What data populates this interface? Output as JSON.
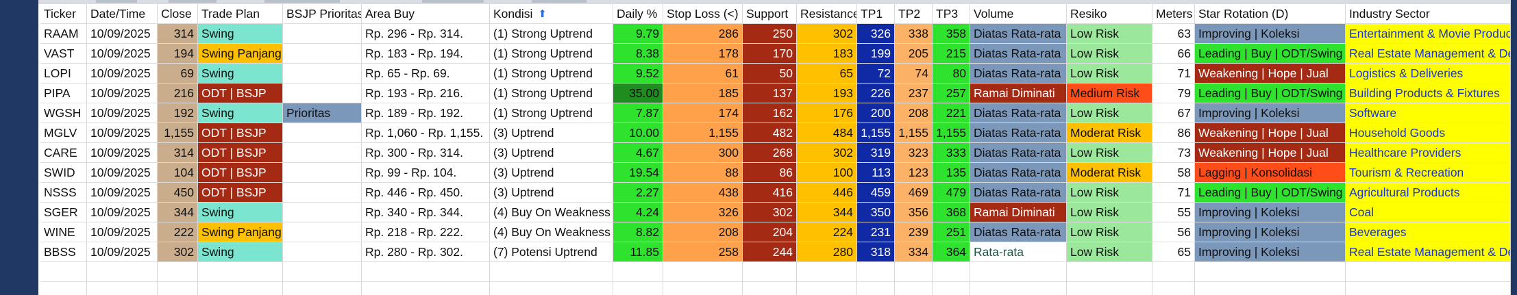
{
  "colors": {
    "window_frame": "#1f3864",
    "close_bg": "#c9ad8c",
    "trade_swing": "#7be5cf",
    "trade_swing_panjang": "#ffc000",
    "trade_odt": "#a52a14",
    "bsjp_prioritas": "#7b97b9",
    "daily_bright": "#2ee22e",
    "daily_dark": "#1e8c1e",
    "stop_loss": "#ffa04a",
    "support": "#a52a14",
    "resistance": "#ffc000",
    "tp1": "#102aa6",
    "tp2": "#fbb266",
    "tp3": "#2ee22e",
    "volume_diatas": "#7b97b9",
    "volume_ramai": "#a52a14",
    "risk_low": "#9be79b",
    "risk_medium": "#ff4d1a",
    "risk_moderat": "#ffc000",
    "rot_improving": "#7b97b9",
    "rot_leading": "#2ee22e",
    "rot_weakening": "#a52a14",
    "rot_lagging": "#ff4d1a",
    "industry_bg": "#ffff00",
    "industry_text": "#1a35c8",
    "arrow_icon": "#2d6bd6"
  },
  "table": {
    "headers": [
      "Ticker",
      "Date/Time",
      "Close",
      "Trade Plan",
      "BSJP Prioritas",
      "Area Buy",
      "Kondisi",
      "Daily %",
      "Stop Loss (<)",
      "Support",
      "Resistance",
      "TP1",
      "TP2",
      "TP3",
      "Volume",
      "Resiko",
      "Meters",
      "Star Rotation (D)",
      "Industry Sector"
    ],
    "kondisi_sort_icon": "sort-arrow-icon",
    "rows": [
      {
        "ticker": "RAAM",
        "date": "10/09/2025",
        "close": "314",
        "plan": "Swing",
        "bsjp": "",
        "area": "Rp. 296 - Rp. 314.",
        "kondisi": "(1) Strong Uptrend",
        "daily": "9.79",
        "stop": "286",
        "support": "250",
        "resistance": "302",
        "tp1": "326",
        "tp2": "338",
        "tp3": "358",
        "volume": "Diatas Rata-rata",
        "resiko": "Low Risk",
        "meters": "63",
        "rotation": "Improving | Koleksi",
        "industry": "Entertainment & Movie Production"
      },
      {
        "ticker": "VAST",
        "date": "10/09/2025",
        "close": "194",
        "plan": "Swing Panjang",
        "bsjp": "",
        "area": "Rp. 183 - Rp. 194.",
        "kondisi": "(1) Strong Uptrend",
        "daily": "8.38",
        "stop": "178",
        "support": "170",
        "resistance": "183",
        "tp1": "199",
        "tp2": "205",
        "tp3": "215",
        "volume": "Diatas Rata-rata",
        "resiko": "Low Risk",
        "meters": "66",
        "rotation": "Leading | Buy | ODT/Swing",
        "industry": "Real Estate Management & Development"
      },
      {
        "ticker": "LOPI",
        "date": "10/09/2025",
        "close": "69",
        "plan": "Swing",
        "bsjp": "",
        "area": "Rp. 65 - Rp. 69.",
        "kondisi": "(1) Strong Uptrend",
        "daily": "9.52",
        "stop": "61",
        "support": "50",
        "resistance": "65",
        "tp1": "72",
        "tp2": "74",
        "tp3": "80",
        "volume": "Diatas Rata-rata",
        "resiko": "Low Risk",
        "meters": "71",
        "rotation": "Weakening | Hope | Jual",
        "industry": "Logistics & Deliveries"
      },
      {
        "ticker": "PIPA",
        "date": "10/09/2025",
        "close": "216",
        "plan": "ODT | BSJP",
        "bsjp": "",
        "area": "Rp. 193 - Rp. 216.",
        "kondisi": "(1) Strong Uptrend",
        "daily": "35.00",
        "stop": "185",
        "support": "137",
        "resistance": "193",
        "tp1": "226",
        "tp2": "237",
        "tp3": "257",
        "volume": "Ramai Diminati",
        "resiko": "Medium Risk",
        "meters": "79",
        "rotation": "Leading | Buy | ODT/Swing",
        "industry": "Building Products & Fixtures"
      },
      {
        "ticker": "WGSH",
        "date": "10/09/2025",
        "close": "192",
        "plan": "Swing",
        "bsjp": "Prioritas",
        "area": "Rp. 189 - Rp. 192.",
        "kondisi": "(1) Strong Uptrend",
        "daily": "7.87",
        "stop": "174",
        "support": "162",
        "resistance": "176",
        "tp1": "200",
        "tp2": "208",
        "tp3": "221",
        "volume": "Diatas Rata-rata",
        "resiko": "Low Risk",
        "meters": "67",
        "rotation": "Improving | Koleksi",
        "industry": "Software"
      },
      {
        "ticker": "MGLV",
        "date": "10/09/2025",
        "close": "1,155",
        "plan": "ODT | BSJP",
        "bsjp": "",
        "area": "Rp. 1,060 - Rp. 1,155.",
        "kondisi": "(3) Uptrend",
        "daily": "10.00",
        "stop": "1,155",
        "support": "482",
        "resistance": "484",
        "tp1": "1,155",
        "tp2": "1,155",
        "tp3": "1,155",
        "volume": "Diatas Rata-rata",
        "resiko": "Moderat Risk",
        "meters": "86",
        "rotation": "Weakening | Hope | Jual",
        "industry": "Household Goods"
      },
      {
        "ticker": "CARE",
        "date": "10/09/2025",
        "close": "314",
        "plan": "ODT | BSJP",
        "bsjp": "",
        "area": "Rp. 300 - Rp. 314.",
        "kondisi": "(3) Uptrend",
        "daily": "4.67",
        "stop": "300",
        "support": "268",
        "resistance": "302",
        "tp1": "319",
        "tp2": "323",
        "tp3": "333",
        "volume": "Diatas Rata-rata",
        "resiko": "Low Risk",
        "meters": "73",
        "rotation": "Weakening | Hope | Jual",
        "industry": "Healthcare Providers"
      },
      {
        "ticker": "SWID",
        "date": "10/09/2025",
        "close": "104",
        "plan": "ODT | BSJP",
        "bsjp": "",
        "area": "Rp. 99 - Rp. 104.",
        "kondisi": "(3) Uptrend",
        "daily": "19.54",
        "stop": "88",
        "support": "86",
        "resistance": "100",
        "tp1": "113",
        "tp2": "123",
        "tp3": "135",
        "volume": "Diatas Rata-rata",
        "resiko": "Moderat Risk",
        "meters": "58",
        "rotation": "Lagging | Konsolidasi",
        "industry": "Tourism & Recreation"
      },
      {
        "ticker": "NSSS",
        "date": "10/09/2025",
        "close": "450",
        "plan": "ODT | BSJP",
        "bsjp": "",
        "area": "Rp. 446 - Rp. 450.",
        "kondisi": "(3) Uptrend",
        "daily": "2.27",
        "stop": "438",
        "support": "416",
        "resistance": "446",
        "tp1": "459",
        "tp2": "469",
        "tp3": "479",
        "volume": "Diatas Rata-rata",
        "resiko": "Low Risk",
        "meters": "71",
        "rotation": "Leading | Buy | ODT/Swing",
        "industry": "Agricultural Products"
      },
      {
        "ticker": "SGER",
        "date": "10/09/2025",
        "close": "344",
        "plan": "Swing",
        "bsjp": "",
        "area": "Rp. 340 - Rp. 344.",
        "kondisi": "(4) Buy On Weakness",
        "daily": "4.24",
        "stop": "326",
        "support": "302",
        "resistance": "344",
        "tp1": "350",
        "tp2": "356",
        "tp3": "368",
        "volume": "Ramai Diminati",
        "resiko": "Low Risk",
        "meters": "55",
        "rotation": "Improving | Koleksi",
        "industry": "Coal"
      },
      {
        "ticker": "WINE",
        "date": "10/09/2025",
        "close": "222",
        "plan": "Swing Panjang",
        "bsjp": "",
        "area": "Rp. 218 - Rp. 222.",
        "kondisi": "(4) Buy On Weakness",
        "daily": "8.82",
        "stop": "208",
        "support": "204",
        "resistance": "224",
        "tp1": "231",
        "tp2": "239",
        "tp3": "251",
        "volume": "Diatas Rata-rata",
        "resiko": "Low Risk",
        "meters": "56",
        "rotation": "Improving | Koleksi",
        "industry": "Beverages"
      },
      {
        "ticker": "BBSS",
        "date": "10/09/2025",
        "close": "302",
        "plan": "Swing",
        "bsjp": "",
        "area": "Rp. 280 - Rp. 302.",
        "kondisi": "(7) Potensi Uptrend",
        "daily": "11.85",
        "stop": "258",
        "support": "244",
        "resistance": "280",
        "tp1": "318",
        "tp2": "334",
        "tp3": "364",
        "volume": "Rata-rata",
        "resiko": "Low Risk",
        "meters": "65",
        "rotation": "Improving | Koleksi",
        "industry": "Real Estate Management & Development"
      }
    ]
  }
}
